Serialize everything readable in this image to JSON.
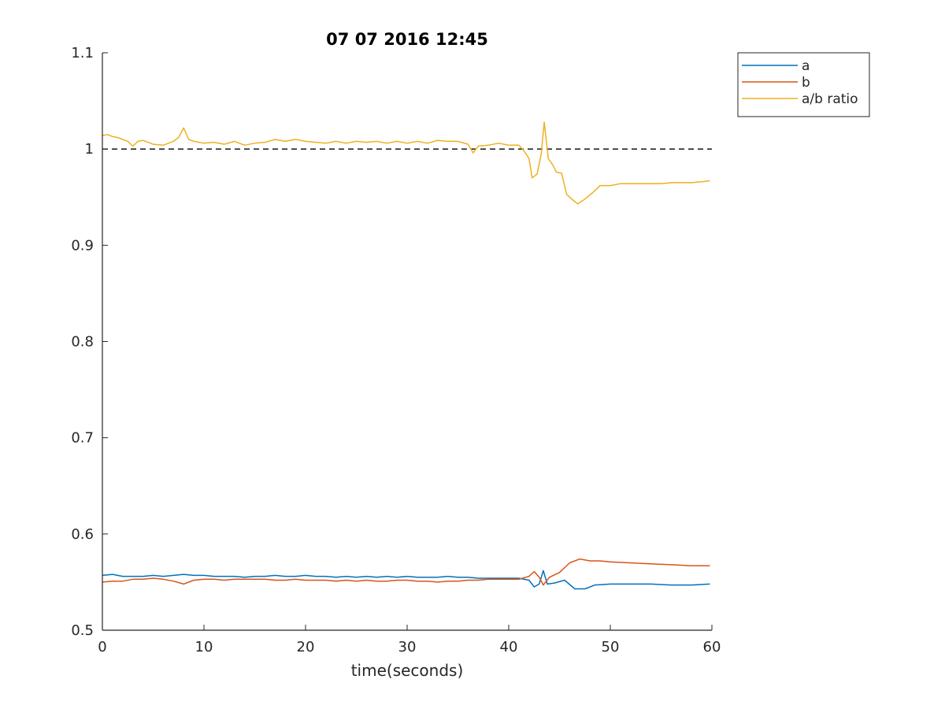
{
  "chart_data": {
    "type": "line",
    "title": "07 07 2016 12:45",
    "xlabel": "time(seconds)",
    "ylabel": "",
    "xlim": [
      0,
      60
    ],
    "ylim": [
      0.5,
      1.1
    ],
    "xticks": [
      0,
      10,
      20,
      30,
      40,
      50,
      60
    ],
    "xtick_labels": [
      "0",
      "10",
      "20",
      "30",
      "40",
      "50",
      "60"
    ],
    "yticks": [
      0.5,
      0.6,
      0.7,
      0.8,
      0.9,
      1.0,
      1.1
    ],
    "ytick_labels": [
      "0.5",
      "0.6",
      "0.7",
      "0.8",
      "0.9",
      "1",
      "1.1"
    ],
    "grid": false,
    "legend_position": "top-right",
    "reference_line": {
      "y": 1.0,
      "style": "dashed",
      "color": "#000000"
    },
    "series": [
      {
        "name": "a",
        "color": "#0072BD",
        "points": [
          [
            0,
            0.557
          ],
          [
            1,
            0.558
          ],
          [
            2,
            0.556
          ],
          [
            3,
            0.556
          ],
          [
            4,
            0.556
          ],
          [
            5,
            0.557
          ],
          [
            6,
            0.556
          ],
          [
            7,
            0.557
          ],
          [
            8,
            0.558
          ],
          [
            9,
            0.557
          ],
          [
            10,
            0.557
          ],
          [
            11,
            0.556
          ],
          [
            12,
            0.556
          ],
          [
            13,
            0.556
          ],
          [
            14,
            0.555
          ],
          [
            15,
            0.556
          ],
          [
            16,
            0.556
          ],
          [
            17,
            0.557
          ],
          [
            18,
            0.556
          ],
          [
            19,
            0.556
          ],
          [
            20,
            0.557
          ],
          [
            21,
            0.556
          ],
          [
            22,
            0.556
          ],
          [
            23,
            0.555
          ],
          [
            24,
            0.556
          ],
          [
            25,
            0.555
          ],
          [
            26,
            0.556
          ],
          [
            27,
            0.555
          ],
          [
            28,
            0.556
          ],
          [
            29,
            0.555
          ],
          [
            30,
            0.556
          ],
          [
            31,
            0.555
          ],
          [
            32,
            0.555
          ],
          [
            33,
            0.555
          ],
          [
            34,
            0.556
          ],
          [
            35,
            0.555
          ],
          [
            36,
            0.555
          ],
          [
            37,
            0.554
          ],
          [
            38,
            0.554
          ],
          [
            39,
            0.554
          ],
          [
            40,
            0.554
          ],
          [
            41,
            0.554
          ],
          [
            42,
            0.552
          ],
          [
            42.5,
            0.545
          ],
          [
            43,
            0.548
          ],
          [
            43.4,
            0.562
          ],
          [
            43.8,
            0.548
          ],
          [
            44.5,
            0.549
          ],
          [
            45.5,
            0.552
          ],
          [
            46.5,
            0.543
          ],
          [
            47.5,
            0.543
          ],
          [
            48.5,
            0.547
          ],
          [
            50,
            0.548
          ],
          [
            52,
            0.548
          ],
          [
            54,
            0.548
          ],
          [
            56,
            0.547
          ],
          [
            58,
            0.547
          ],
          [
            59.8,
            0.548
          ]
        ]
      },
      {
        "name": "b",
        "color": "#D95319",
        "points": [
          [
            0,
            0.55
          ],
          [
            1,
            0.551
          ],
          [
            2,
            0.551
          ],
          [
            3,
            0.553
          ],
          [
            4,
            0.553
          ],
          [
            5,
            0.554
          ],
          [
            6,
            0.553
          ],
          [
            7,
            0.551
          ],
          [
            8,
            0.548
          ],
          [
            9,
            0.552
          ],
          [
            10,
            0.553
          ],
          [
            11,
            0.553
          ],
          [
            12,
            0.552
          ],
          [
            13,
            0.553
          ],
          [
            14,
            0.553
          ],
          [
            15,
            0.553
          ],
          [
            16,
            0.553
          ],
          [
            17,
            0.552
          ],
          [
            18,
            0.552
          ],
          [
            19,
            0.553
          ],
          [
            20,
            0.552
          ],
          [
            21,
            0.552
          ],
          [
            22,
            0.552
          ],
          [
            23,
            0.551
          ],
          [
            24,
            0.552
          ],
          [
            25,
            0.551
          ],
          [
            26,
            0.552
          ],
          [
            27,
            0.551
          ],
          [
            28,
            0.551
          ],
          [
            29,
            0.552
          ],
          [
            30,
            0.552
          ],
          [
            31,
            0.551
          ],
          [
            32,
            0.551
          ],
          [
            33,
            0.55
          ],
          [
            34,
            0.551
          ],
          [
            35,
            0.551
          ],
          [
            36,
            0.552
          ],
          [
            37,
            0.552
          ],
          [
            38,
            0.553
          ],
          [
            39,
            0.553
          ],
          [
            40,
            0.553
          ],
          [
            41,
            0.553
          ],
          [
            42,
            0.556
          ],
          [
            42.5,
            0.561
          ],
          [
            43,
            0.555
          ],
          [
            43.4,
            0.547
          ],
          [
            44,
            0.555
          ],
          [
            45,
            0.56
          ],
          [
            46,
            0.57
          ],
          [
            47,
            0.574
          ],
          [
            48,
            0.572
          ],
          [
            49,
            0.572
          ],
          [
            50,
            0.571
          ],
          [
            52,
            0.57
          ],
          [
            54,
            0.569
          ],
          [
            56,
            0.568
          ],
          [
            58,
            0.567
          ],
          [
            59.8,
            0.567
          ]
        ]
      },
      {
        "name": "a/b ratio",
        "color": "#EDB120",
        "points": [
          [
            0,
            1.014
          ],
          [
            0.5,
            1.015
          ],
          [
            1,
            1.013
          ],
          [
            1.5,
            1.012
          ],
          [
            2,
            1.01
          ],
          [
            2.5,
            1.008
          ],
          [
            3,
            1.003
          ],
          [
            3.5,
            1.008
          ],
          [
            4,
            1.009
          ],
          [
            5,
            1.005
          ],
          [
            6,
            1.004
          ],
          [
            7,
            1.008
          ],
          [
            7.5,
            1.012
          ],
          [
            8,
            1.022
          ],
          [
            8.5,
            1.01
          ],
          [
            9,
            1.008
          ],
          [
            10,
            1.006
          ],
          [
            11,
            1.007
          ],
          [
            12,
            1.005
          ],
          [
            13,
            1.008
          ],
          [
            14,
            1.004
          ],
          [
            15,
            1.006
          ],
          [
            16,
            1.007
          ],
          [
            17,
            1.01
          ],
          [
            18,
            1.008
          ],
          [
            19,
            1.01
          ],
          [
            20,
            1.008
          ],
          [
            21,
            1.007
          ],
          [
            22,
            1.006
          ],
          [
            23,
            1.008
          ],
          [
            24,
            1.006
          ],
          [
            25,
            1.008
          ],
          [
            26,
            1.007
          ],
          [
            27,
            1.008
          ],
          [
            28,
            1.006
          ],
          [
            29,
            1.008
          ],
          [
            30,
            1.006
          ],
          [
            31,
            1.008
          ],
          [
            32,
            1.006
          ],
          [
            33,
            1.009
          ],
          [
            34,
            1.008
          ],
          [
            35,
            1.008
          ],
          [
            36,
            1.005
          ],
          [
            36.5,
            0.996
          ],
          [
            37,
            1.003
          ],
          [
            38,
            1.004
          ],
          [
            39,
            1.006
          ],
          [
            40,
            1.004
          ],
          [
            41,
            1.004
          ],
          [
            41.5,
            0.998
          ],
          [
            42,
            0.99
          ],
          [
            42.3,
            0.97
          ],
          [
            42.8,
            0.974
          ],
          [
            43.2,
            0.995
          ],
          [
            43.5,
            1.028
          ],
          [
            43.9,
            0.99
          ],
          [
            44.3,
            0.984
          ],
          [
            44.7,
            0.976
          ],
          [
            45.2,
            0.975
          ],
          [
            45.7,
            0.953
          ],
          [
            46.3,
            0.947
          ],
          [
            46.8,
            0.943
          ],
          [
            47.5,
            0.948
          ],
          [
            48.3,
            0.955
          ],
          [
            49,
            0.962
          ],
          [
            50,
            0.962
          ],
          [
            51,
            0.964
          ],
          [
            52,
            0.964
          ],
          [
            53,
            0.964
          ],
          [
            54,
            0.964
          ],
          [
            55,
            0.964
          ],
          [
            56,
            0.965
          ],
          [
            57,
            0.965
          ],
          [
            58,
            0.965
          ],
          [
            59,
            0.966
          ],
          [
            59.8,
            0.967
          ]
        ]
      }
    ]
  }
}
